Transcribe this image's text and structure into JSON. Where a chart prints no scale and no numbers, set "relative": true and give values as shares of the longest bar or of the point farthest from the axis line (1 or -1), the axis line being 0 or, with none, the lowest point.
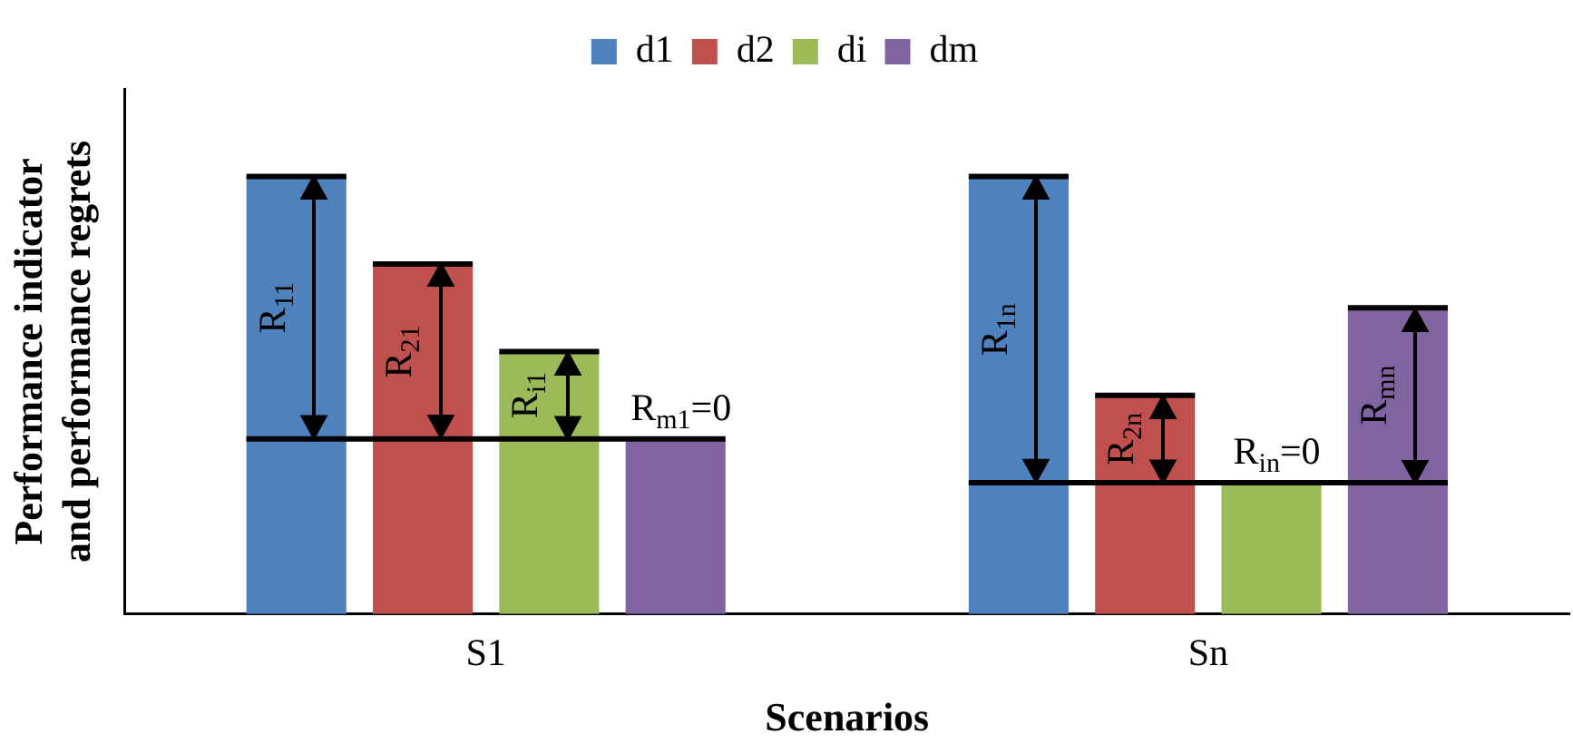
{
  "chart_data": {
    "type": "bar",
    "relative": true,
    "xlabel": "Scenarios",
    "ylabel": "Performance indicator\nand performance regrets",
    "categories": [
      "S1",
      "Sn"
    ],
    "series": [
      {
        "name": "d1",
        "color": "#4f81bd",
        "values": [
          1,
          1
        ]
      },
      {
        "name": "d2",
        "color": "#c0504d",
        "values": [
          0.8,
          0.5
        ]
      },
      {
        "name": "di",
        "color": "#9bbb59",
        "values": [
          0.6,
          0.3
        ]
      },
      {
        "name": "dm",
        "color": "#8064a2",
        "values": [
          0.4,
          0.7
        ]
      }
    ],
    "ref_lines": [
      {
        "axis": "y",
        "value": 0.4
      },
      {
        "axis": "y",
        "value": 0.3
      }
    ],
    "annotations": [
      "R$_{11}$",
      "R$_{21}$",
      "R$_{i1}$",
      "R$_{m1}$=0",
      "R$_{1n}$",
      "R$_{2n}$",
      "R$_{in}$=0",
      "R$_{mn}$"
    ],
    "legend": "top",
    "grid": false
  }
}
